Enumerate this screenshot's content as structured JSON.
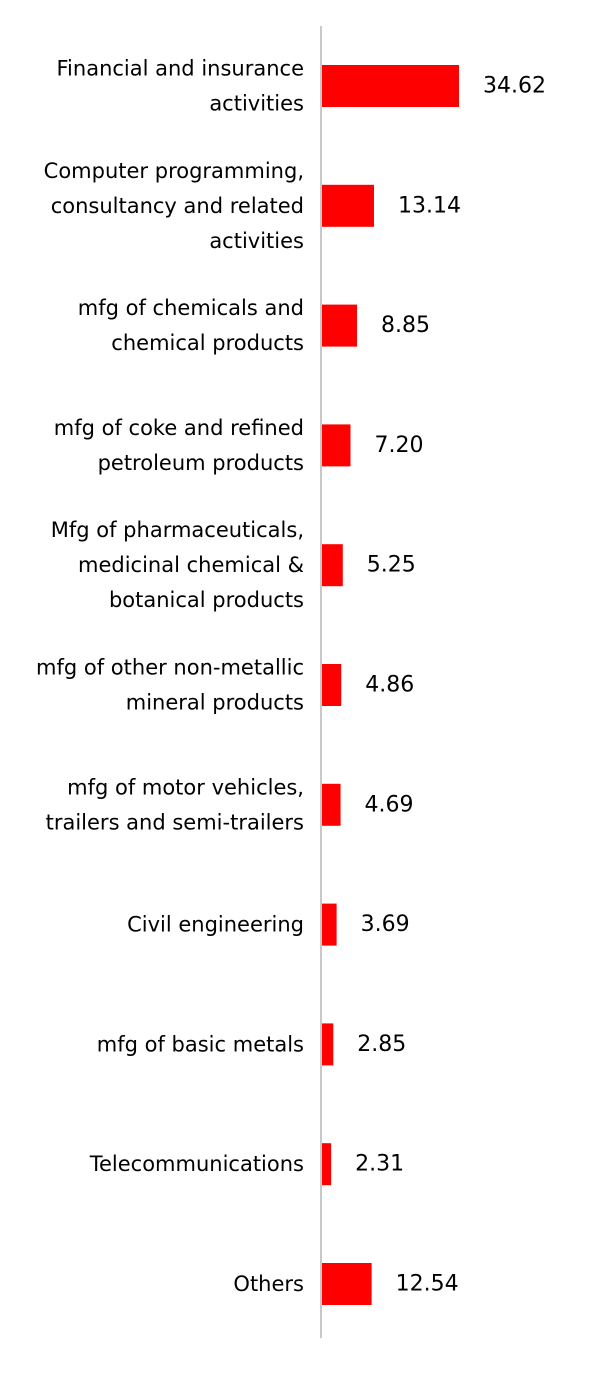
{
  "chart_data": {
    "type": "bar",
    "orientation": "horizontal",
    "title": "",
    "xlabel": "",
    "ylabel": "",
    "grid": false,
    "legend": "none",
    "bar_color": "#ff0000",
    "axis_color": "#c8c8c8",
    "xlim": [
      0,
      34.62
    ],
    "categories": [
      [
        "Financial and insurance",
        "activities"
      ],
      [
        "Computer programming,",
        "consultancy and related",
        "activities"
      ],
      [
        "mfg of chemicals and",
        "chemical products"
      ],
      [
        "mfg of coke and refined",
        "petroleum products"
      ],
      [
        "Mfg of pharmaceuticals,",
        "medicinal chemical &",
        "botanical products"
      ],
      [
        "mfg of other non-metallic",
        "mineral products"
      ],
      [
        "mfg of motor vehicles,",
        "trailers and semi-trailers"
      ],
      [
        "Civil engineering"
      ],
      [
        "mfg of basic metals"
      ],
      [
        "Telecommunications"
      ],
      [
        "Others"
      ]
    ],
    "values": [
      34.62,
      13.14,
      8.85,
      7.2,
      5.25,
      4.86,
      4.69,
      3.69,
      2.85,
      2.31,
      12.54
    ],
    "value_labels": [
      "34.62",
      "13.14",
      "8.85",
      "7.20",
      "5.25",
      "4.86",
      "4.69",
      "3.69",
      "2.85",
      "2.31",
      "12.54"
    ]
  }
}
